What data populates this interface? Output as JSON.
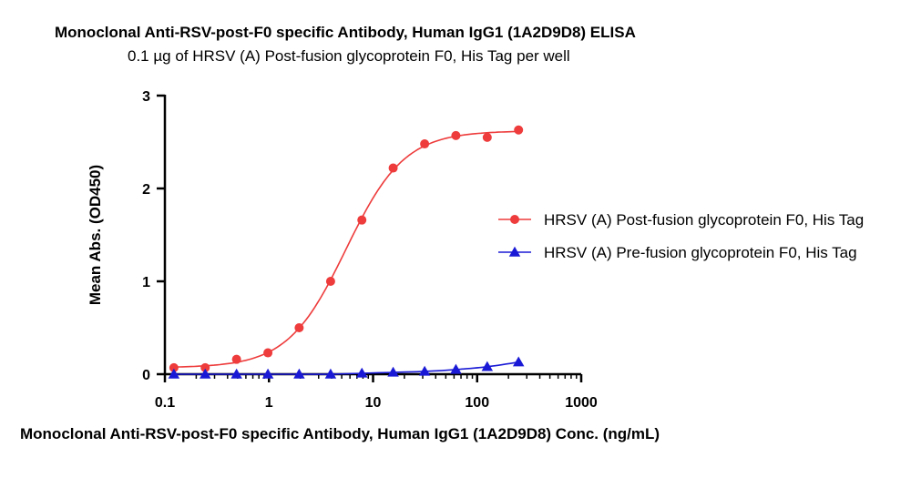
{
  "chart_data": {
    "type": "scatter",
    "title": "Monoclonal Anti-RSV-post-F0 specific Antibody, Human IgG1 (1A2D9D8) ELISA",
    "subtitle": "0.1 µg of HRSV (A) Post-fusion glycoprotein F0, His Tag per well",
    "xlabel": "Monoclonal Anti-RSV-post-F0 specific Antibody, Human IgG1 (1A2D9D8) Conc. (ng/mL)",
    "ylabel": "Mean Abs. (OD450)",
    "xscale": "log",
    "xlim": [
      0.1,
      1000
    ],
    "ylim": [
      0,
      3
    ],
    "xticks": [
      {
        "value": 0.1,
        "label": "0.1"
      },
      {
        "value": 1,
        "label": "1"
      },
      {
        "value": 10,
        "label": "10"
      },
      {
        "value": 100,
        "label": "100"
      },
      {
        "value": 1000,
        "label": "1000"
      }
    ],
    "yticks": [
      {
        "value": 0,
        "label": "0"
      },
      {
        "value": 1,
        "label": "1"
      },
      {
        "value": 2,
        "label": "2"
      },
      {
        "value": 3,
        "label": "3"
      }
    ],
    "grid": false,
    "legend_position": "right",
    "series": [
      {
        "name": "HRSV (A) Post-fusion glycoprotein F0, His Tag",
        "color": "#ee3b3b",
        "marker": "circle",
        "fit": "sigmoid",
        "x": [
          0.122,
          0.244,
          0.488,
          0.977,
          1.95,
          3.91,
          7.81,
          15.6,
          31.3,
          62.5,
          125,
          250
        ],
        "y": [
          0.07,
          0.07,
          0.16,
          0.23,
          0.5,
          1.0,
          1.66,
          2.22,
          2.48,
          2.57,
          2.55,
          2.63
        ]
      },
      {
        "name": "HRSV (A) Pre-fusion glycoprotein F0, His Tag",
        "color": "#1a1ad6",
        "marker": "triangle",
        "fit": "smooth",
        "x": [
          0.122,
          0.244,
          0.488,
          0.977,
          1.95,
          3.91,
          7.81,
          15.6,
          31.3,
          62.5,
          125,
          250
        ],
        "y": [
          0.0,
          0.0,
          0.0,
          0.0,
          0.0,
          0.0,
          0.01,
          0.02,
          0.03,
          0.05,
          0.08,
          0.13
        ]
      }
    ]
  }
}
